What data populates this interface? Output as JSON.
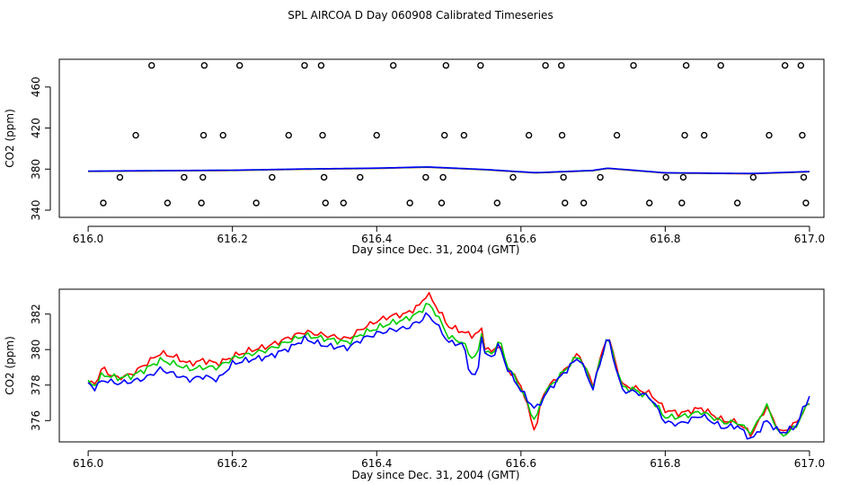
{
  "title": "SPL AIRCOA D  Day 060908  Calibrated Timeseries",
  "chart_data": [
    {
      "type": "scatter",
      "xlabel": "Day since Dec. 31, 2004 (GMT)",
      "ylabel": "CO2 (ppm)",
      "xlim": [
        615.96,
        617.02
      ],
      "ylim": [
        333,
        487
      ],
      "xticks": [
        "616.0",
        "616.2",
        "616.4",
        "616.6",
        "616.8",
        "617.0"
      ],
      "yticks": [
        "340",
        "380",
        "420",
        "460"
      ],
      "grid": false,
      "points": [
        {
          "x": 616.021,
          "y": 347
        },
        {
          "x": 616.044,
          "y": 372
        },
        {
          "x": 616.066,
          "y": 413
        },
        {
          "x": 616.088,
          "y": 481
        },
        {
          "x": 616.11,
          "y": 347
        },
        {
          "x": 616.133,
          "y": 372
        },
        {
          "x": 616.157,
          "y": 347
        },
        {
          "x": 616.159,
          "y": 372
        },
        {
          "x": 616.16,
          "y": 413
        },
        {
          "x": 616.161,
          "y": 481
        },
        {
          "x": 616.187,
          "y": 413
        },
        {
          "x": 616.21,
          "y": 481
        },
        {
          "x": 616.233,
          "y": 347
        },
        {
          "x": 616.255,
          "y": 372
        },
        {
          "x": 616.278,
          "y": 413
        },
        {
          "x": 616.3,
          "y": 481
        },
        {
          "x": 616.323,
          "y": 481
        },
        {
          "x": 616.325,
          "y": 413
        },
        {
          "x": 616.327,
          "y": 372
        },
        {
          "x": 616.329,
          "y": 347
        },
        {
          "x": 616.354,
          "y": 347
        },
        {
          "x": 616.377,
          "y": 372
        },
        {
          "x": 616.4,
          "y": 413
        },
        {
          "x": 616.423,
          "y": 481
        },
        {
          "x": 616.446,
          "y": 347
        },
        {
          "x": 616.468,
          "y": 372
        },
        {
          "x": 616.49,
          "y": 347
        },
        {
          "x": 616.492,
          "y": 372
        },
        {
          "x": 616.494,
          "y": 413
        },
        {
          "x": 616.496,
          "y": 481
        },
        {
          "x": 616.521,
          "y": 413
        },
        {
          "x": 616.544,
          "y": 481
        },
        {
          "x": 616.567,
          "y": 347
        },
        {
          "x": 616.589,
          "y": 372
        },
        {
          "x": 616.611,
          "y": 413
        },
        {
          "x": 616.634,
          "y": 481
        },
        {
          "x": 616.656,
          "y": 481
        },
        {
          "x": 616.657,
          "y": 413
        },
        {
          "x": 616.659,
          "y": 372
        },
        {
          "x": 616.661,
          "y": 347
        },
        {
          "x": 616.687,
          "y": 347
        },
        {
          "x": 616.71,
          "y": 372
        },
        {
          "x": 616.733,
          "y": 413
        },
        {
          "x": 616.756,
          "y": 481
        },
        {
          "x": 616.778,
          "y": 347
        },
        {
          "x": 616.801,
          "y": 372
        },
        {
          "x": 616.823,
          "y": 347
        },
        {
          "x": 616.825,
          "y": 372
        },
        {
          "x": 616.827,
          "y": 413
        },
        {
          "x": 616.829,
          "y": 481
        },
        {
          "x": 616.854,
          "y": 413
        },
        {
          "x": 616.877,
          "y": 481
        },
        {
          "x": 616.9,
          "y": 347
        },
        {
          "x": 616.922,
          "y": 372
        },
        {
          "x": 616.944,
          "y": 413
        },
        {
          "x": 616.966,
          "y": 481
        },
        {
          "x": 616.988,
          "y": 481
        },
        {
          "x": 616.99,
          "y": 413
        },
        {
          "x": 616.992,
          "y": 372
        },
        {
          "x": 616.995,
          "y": 347
        }
      ],
      "series": [
        {
          "color": "#ff0000",
          "x": [
            616.0,
            617.0
          ],
          "values": [
            377.9,
            377.7
          ]
        },
        {
          "color": "#00cc00",
          "x": [
            616.0,
            617.0
          ],
          "values": [
            377.9,
            377.7
          ]
        },
        {
          "color": "#0000ff",
          "x": [
            616.0,
            617.0
          ],
          "values": [
            377.9,
            377.7
          ]
        }
      ],
      "line_profile": {
        "x": [
          616.0,
          616.1,
          616.2,
          616.3,
          616.4,
          616.47,
          616.55,
          616.62,
          616.7,
          616.72,
          616.8,
          616.92,
          617.0
        ],
        "values": [
          377.9,
          378.4,
          378.8,
          380.0,
          380.8,
          382.0,
          379.5,
          376.4,
          378.6,
          380.8,
          376.3,
          375.6,
          377.5
        ]
      }
    },
    {
      "type": "line",
      "xlabel": "Day since Dec. 31, 2004 (GMT)",
      "ylabel": "CO2 (ppm)",
      "xlim": [
        615.96,
        617.02
      ],
      "ylim": [
        374.8,
        383.4
      ],
      "xticks": [
        "616.0",
        "616.2",
        "616.4",
        "616.6",
        "616.8",
        "617.0"
      ],
      "yticks": [
        "376",
        "378",
        "380",
        "382"
      ],
      "grid": false,
      "series": [
        {
          "color": "#ff0000",
          "x": [
            616.0,
            616.01,
            616.02,
            616.03,
            616.04,
            616.06,
            616.08,
            616.1,
            616.12,
            616.14,
            616.16,
            616.18,
            616.2,
            616.22,
            616.25,
            616.28,
            616.3,
            616.33,
            616.36,
            616.38,
            616.4,
            616.42,
            616.44,
            616.46,
            616.47,
            616.48,
            616.5,
            616.52,
            616.53,
            616.54,
            616.545,
            616.55,
            616.56,
            616.57,
            616.58,
            616.6,
            616.62,
            616.63,
            616.64,
            616.66,
            616.68,
            616.7,
            616.72,
            616.74,
            616.76,
            616.78,
            616.8,
            616.82,
            616.85,
            616.88,
            616.9,
            616.92,
            616.94,
            616.96,
            616.98,
            617.0
          ],
          "values": [
            378.1,
            378.1,
            379.0,
            378.6,
            378.4,
            378.6,
            379.2,
            379.8,
            379.6,
            379.2,
            379.4,
            379.2,
            379.6,
            379.9,
            380.2,
            380.7,
            381.0,
            380.8,
            380.6,
            381.2,
            381.6,
            381.9,
            382.0,
            382.5,
            383.2,
            382.6,
            381.3,
            381.0,
            380.8,
            380.9,
            381.2,
            380.2,
            379.8,
            380.4,
            379.0,
            378.0,
            375.3,
            377.5,
            378.0,
            378.8,
            379.8,
            378.0,
            380.9,
            378.0,
            377.8,
            377.5,
            376.6,
            376.4,
            376.7,
            376.0,
            375.9,
            375.2,
            376.8,
            375.3,
            375.8,
            377.0
          ]
        },
        {
          "color": "#00cc00",
          "x": [
            616.0,
            616.01,
            616.02,
            616.03,
            616.04,
            616.06,
            616.08,
            616.1,
            616.12,
            616.14,
            616.16,
            616.18,
            616.2,
            616.22,
            616.25,
            616.28,
            616.3,
            616.33,
            616.36,
            616.38,
            616.4,
            616.42,
            616.44,
            616.46,
            616.47,
            616.48,
            616.5,
            616.52,
            616.53,
            616.54,
            616.545,
            616.55,
            616.56,
            616.57,
            616.58,
            616.6,
            616.62,
            616.63,
            616.64,
            616.66,
            616.68,
            616.7,
            616.72,
            616.74,
            616.76,
            616.78,
            616.8,
            616.82,
            616.85,
            616.88,
            616.9,
            616.92,
            616.94,
            616.96,
            616.98,
            617.0
          ],
          "values": [
            378.1,
            378.0,
            378.6,
            378.5,
            378.4,
            378.5,
            378.9,
            379.4,
            379.2,
            378.9,
            379.0,
            379.0,
            379.5,
            379.7,
            380.0,
            380.5,
            380.8,
            380.6,
            380.4,
            380.9,
            381.2,
            381.5,
            381.7,
            382.1,
            382.6,
            382.2,
            380.7,
            380.4,
            379.6,
            379.6,
            381.1,
            379.9,
            379.7,
            380.6,
            379.2,
            377.8,
            375.9,
            377.4,
            377.9,
            378.8,
            379.7,
            377.9,
            380.8,
            377.9,
            377.7,
            377.2,
            376.2,
            376.2,
            376.5,
            375.9,
            375.9,
            375.3,
            376.9,
            375.1,
            375.6,
            377.1
          ]
        },
        {
          "color": "#0000ff",
          "x": [
            616.0,
            616.01,
            616.02,
            616.03,
            616.04,
            616.06,
            616.08,
            616.1,
            616.12,
            616.14,
            616.16,
            616.18,
            616.2,
            616.22,
            616.25,
            616.28,
            616.3,
            616.33,
            616.36,
            616.38,
            616.4,
            616.42,
            616.44,
            616.46,
            616.47,
            616.48,
            616.5,
            616.52,
            616.53,
            616.54,
            616.545,
            616.55,
            616.56,
            616.57,
            616.58,
            616.6,
            616.62,
            616.63,
            616.64,
            616.66,
            616.68,
            616.7,
            616.72,
            616.74,
            616.76,
            616.78,
            616.8,
            616.82,
            616.85,
            616.88,
            616.9,
            616.92,
            616.94,
            616.96,
            616.98,
            617.0
          ],
          "values": [
            378.1,
            377.8,
            378.3,
            378.2,
            378.1,
            378.2,
            378.4,
            378.9,
            378.6,
            378.3,
            378.5,
            378.3,
            379.2,
            379.4,
            379.6,
            380.1,
            380.6,
            380.2,
            380.1,
            380.6,
            380.9,
            381.1,
            381.2,
            381.6,
            382.0,
            381.6,
            380.4,
            380.3,
            378.6,
            378.5,
            381.0,
            379.7,
            379.6,
            380.3,
            379.0,
            377.7,
            376.6,
            377.2,
            377.8,
            378.7,
            379.6,
            377.8,
            380.8,
            377.7,
            377.6,
            377.3,
            375.9,
            375.8,
            376.3,
            375.6,
            375.7,
            374.9,
            376.0,
            375.3,
            375.6,
            377.4
          ]
        }
      ]
    }
  ]
}
